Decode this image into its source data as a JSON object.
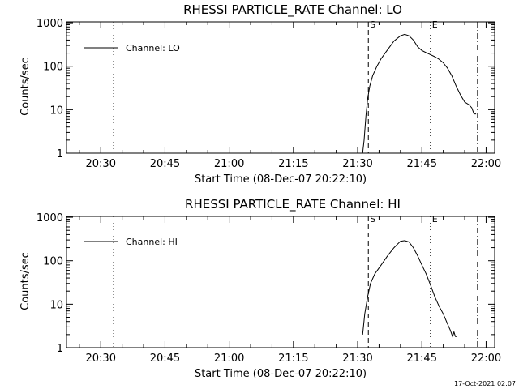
{
  "footer": {
    "timestamp": "17-Oct-2021 02:07"
  },
  "chart_data": [
    {
      "type": "line",
      "title": "RHESSI PARTICLE_RATE Channel: LO",
      "xlabel": "Start Time (08-Dec-07 20:22:10)",
      "ylabel": "Counts/sec",
      "y_scale": "log",
      "ylim": [
        1,
        1000
      ],
      "xlim": [
        "20:22",
        "22:02"
      ],
      "x_ticks": [
        "20:30",
        "20:45",
        "21:00",
        "21:15",
        "21:30",
        "21:45",
        "22:00"
      ],
      "y_ticks": [
        "1",
        "10",
        "100",
        "1000"
      ],
      "legend": {
        "entries": [
          "Channel: LO"
        ],
        "placement": "top-left"
      },
      "markers": [
        {
          "label": "",
          "time": "20:33",
          "style": "dotted"
        },
        {
          "label": "S",
          "time": "21:32:30",
          "style": "dashed"
        },
        {
          "label": "E",
          "time": "21:47",
          "style": "dotted"
        },
        {
          "label": "",
          "time": "21:58",
          "style": "dash-dot"
        }
      ],
      "series": [
        {
          "name": "Channel: LO",
          "points": [
            [
              "21:31:10",
              1
            ],
            [
              "21:31:30",
              2
            ],
            [
              "21:31:55",
              7
            ],
            [
              "21:32:20",
              18
            ],
            [
              "21:32:50",
              35
            ],
            [
              "21:33:30",
              60
            ],
            [
              "21:34:30",
              100
            ],
            [
              "21:35:30",
              150
            ],
            [
              "21:37:00",
              240
            ],
            [
              "21:38:30",
              380
            ],
            [
              "21:40:00",
              500
            ],
            [
              "21:41:00",
              540
            ],
            [
              "21:42:00",
              500
            ],
            [
              "21:43:00",
              400
            ],
            [
              "21:44:00",
              280
            ],
            [
              "21:45:00",
              230
            ],
            [
              "21:46:00",
              205
            ],
            [
              "21:47:00",
              185
            ],
            [
              "21:48:00",
              165
            ],
            [
              "21:49:00",
              145
            ],
            [
              "21:50:00",
              120
            ],
            [
              "21:51:00",
              90
            ],
            [
              "21:52:00",
              60
            ],
            [
              "21:53:00",
              35
            ],
            [
              "21:54:00",
              22
            ],
            [
              "21:55:00",
              15
            ],
            [
              "21:56:00",
              13
            ],
            [
              "21:56:40",
              11
            ],
            [
              "21:57:10",
              8
            ],
            [
              "21:57:40",
              8
            ]
          ]
        }
      ]
    },
    {
      "type": "line",
      "title": "RHESSI PARTICLE_RATE Channel: HI",
      "xlabel": "Start Time (08-Dec-07 20:22:10)",
      "ylabel": "Counts/sec",
      "y_scale": "log",
      "ylim": [
        1,
        1000
      ],
      "xlim": [
        "20:22",
        "22:02"
      ],
      "x_ticks": [
        "20:30",
        "20:45",
        "21:00",
        "21:15",
        "21:30",
        "21:45",
        "22:00"
      ],
      "y_ticks": [
        "1",
        "10",
        "100",
        "1000"
      ],
      "legend": {
        "entries": [
          "Channel: HI"
        ],
        "placement": "top-left"
      },
      "markers": [
        {
          "label": "",
          "time": "20:33",
          "style": "dotted"
        },
        {
          "label": "S",
          "time": "21:32:30",
          "style": "dashed"
        },
        {
          "label": "E",
          "time": "21:47",
          "style": "dotted"
        },
        {
          "label": "",
          "time": "21:58",
          "style": "dash-dot"
        }
      ],
      "series": [
        {
          "name": "Channel: HI",
          "points": [
            [
              "21:31:10",
              2
            ],
            [
              "21:31:40",
              6
            ],
            [
              "21:32:20",
              15
            ],
            [
              "21:33:00",
              30
            ],
            [
              "21:34:00",
              50
            ],
            [
              "21:35:30",
              80
            ],
            [
              "21:37:00",
              130
            ],
            [
              "21:38:30",
              200
            ],
            [
              "21:40:00",
              280
            ],
            [
              "21:41:00",
              290
            ],
            [
              "21:42:00",
              270
            ],
            [
              "21:43:00",
              200
            ],
            [
              "21:44:00",
              130
            ],
            [
              "21:45:00",
              80
            ],
            [
              "21:46:00",
              50
            ],
            [
              "21:47:00",
              28
            ],
            [
              "21:48:00",
              15
            ],
            [
              "21:49:00",
              9
            ],
            [
              "21:50:00",
              6
            ],
            [
              "21:51:00",
              3.5
            ],
            [
              "21:51:40",
              2.5
            ],
            [
              "21:52:10",
              1.8
            ],
            [
              "21:52:30",
              2.3
            ],
            [
              "21:52:50",
              1.8
            ],
            [
              "21:53:10",
              1.8
            ]
          ]
        }
      ]
    }
  ]
}
